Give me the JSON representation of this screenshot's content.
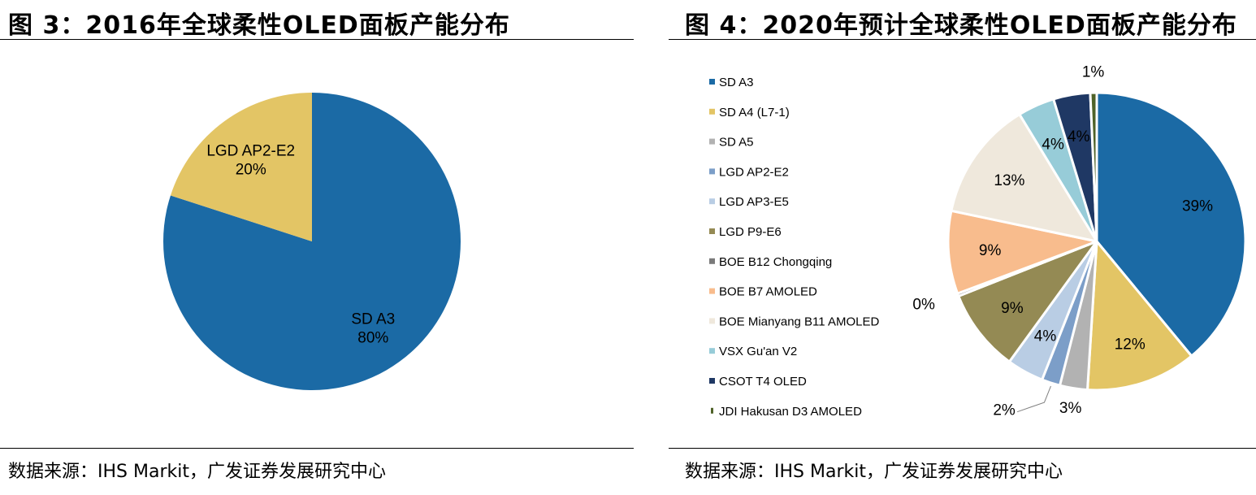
{
  "left": {
    "title": "图 3：2016年全球柔性OLED面板产能分布",
    "source": "数据来源：IHS Markit，广发证券发展研究中心"
  },
  "right": {
    "title": "图 4：2020年预计全球柔性OLED面板产能分布",
    "source": "数据来源：IHS Markit，广发证券发展研究中心"
  },
  "chart_data": [
    {
      "type": "pie",
      "title": "2016年全球柔性OLED面板产能分布",
      "series": [
        {
          "name": "SD A3",
          "value": 80,
          "label": "80%",
          "color": "#1b6aa5"
        },
        {
          "name": "LGD AP2-E2",
          "value": 20,
          "label": "20%",
          "color": "#e3c565"
        }
      ],
      "labels_inside": true,
      "legend": "none"
    },
    {
      "type": "pie",
      "title": "2020年预计全球柔性OLED面板产能分布",
      "series": [
        {
          "name": "SD A3",
          "value": 39,
          "label": "39%",
          "color": "#1b6aa5"
        },
        {
          "name": "SD A4 (L7-1)",
          "value": 12,
          "label": "12%",
          "color": "#e3c565"
        },
        {
          "name": "SD A5",
          "value": 3,
          "label": "3%",
          "color": "#b2b2b2"
        },
        {
          "name": "LGD AP2-E2",
          "value": 2,
          "label": "2%",
          "color": "#7c9ec8"
        },
        {
          "name": "LGD AP3-E5",
          "value": 4,
          "label": "4%",
          "color": "#b9cde4"
        },
        {
          "name": "LGD P9-E6",
          "value": 9,
          "label": "9%",
          "color": "#948a54"
        },
        {
          "name": "BOE B12 Chongqing",
          "value": 0.3,
          "label": "0%",
          "color": "#7a7a7a"
        },
        {
          "name": "BOE B7 AMOLED",
          "value": 9,
          "label": "9%",
          "color": "#f8bc8d"
        },
        {
          "name": "BOE Mianyang B11 AMOLED",
          "value": 13,
          "label": "13%",
          "color": "#efe8dc"
        },
        {
          "name": "VSX Gu'an V2",
          "value": 4,
          "label": "4%",
          "color": "#97ccd8"
        },
        {
          "name": "CSOT T4 OLED",
          "value": 4,
          "label": "4%",
          "color": "#1f3864"
        },
        {
          "name": "JDI Hakusan D3 AMOLED",
          "value": 0.7,
          "label": "1%",
          "color": "#4f6228"
        }
      ],
      "legend": "left"
    }
  ]
}
